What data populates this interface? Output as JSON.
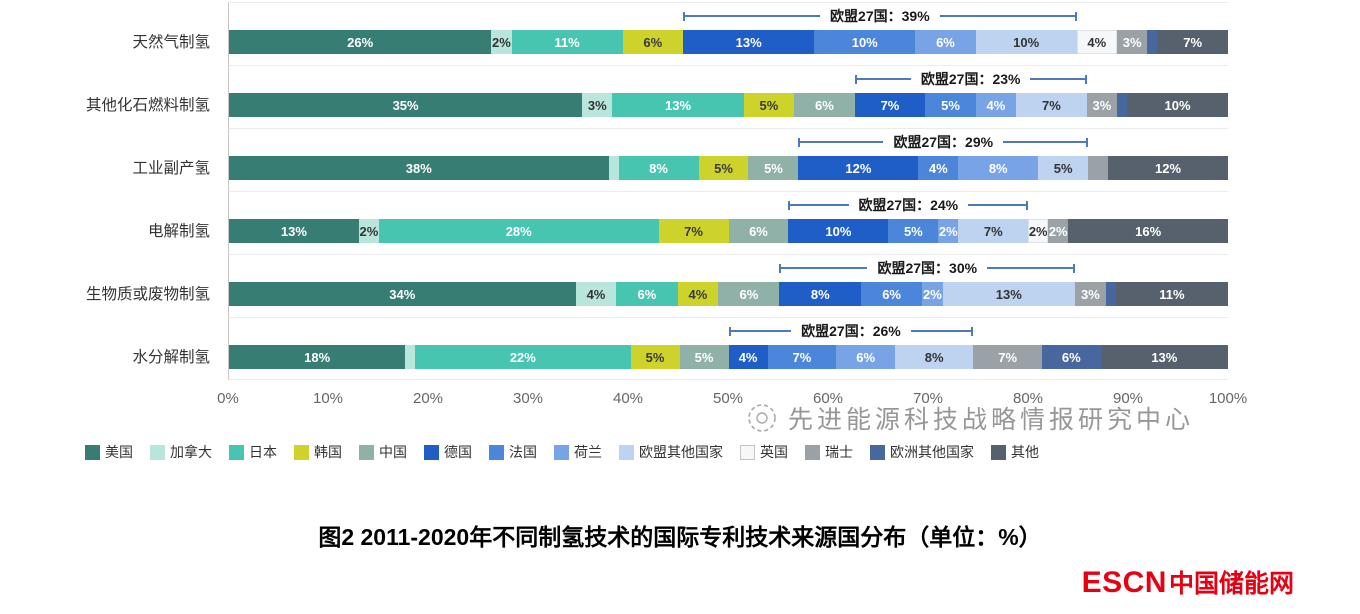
{
  "watermark": {
    "text": "先进能源科技战略情报研究中心"
  },
  "caption": "图2 2011-2020年不同制氢技术的国际专利技术来源国分布（单位：%）",
  "brand": {
    "escn": "ESCN",
    "site": "中国储能网"
  },
  "chart_data": {
    "type": "bar",
    "variant": "horizontal-stacked",
    "unit": "%",
    "xlim": [
      0,
      100
    ],
    "x_ticks": [
      "0%",
      "10%",
      "20%",
      "30%",
      "40%",
      "50%",
      "60%",
      "70%",
      "80%",
      "90%",
      "100%"
    ],
    "legend_position": "bottom",
    "legend": [
      {
        "key": "us",
        "label": "美国",
        "color": "#387d74",
        "text": "#ffffff"
      },
      {
        "key": "canada",
        "label": "加拿大",
        "color": "#b9e6dc",
        "text": "#333333"
      },
      {
        "key": "japan",
        "label": "日本",
        "color": "#48c5b1",
        "text": "#ffffff"
      },
      {
        "key": "korea",
        "label": "韩国",
        "color": "#cdd32a",
        "text": "#3a3a3a"
      },
      {
        "key": "china",
        "label": "中国",
        "color": "#90b1a8",
        "text": "#ffffff"
      },
      {
        "key": "germany",
        "label": "德国",
        "color": "#1f5ec7",
        "text": "#ffffff"
      },
      {
        "key": "france",
        "label": "法国",
        "color": "#4c86da",
        "text": "#ffffff"
      },
      {
        "key": "netherlands",
        "label": "荷兰",
        "color": "#78a3e4",
        "text": "#ffffff"
      },
      {
        "key": "eu_other",
        "label": "欧盟其他国家",
        "color": "#bdd3f0",
        "text": "#333333"
      },
      {
        "key": "uk",
        "label": "英国",
        "color": "#f5f7f9",
        "text": "#333333"
      },
      {
        "key": "switzerland",
        "label": "瑞士",
        "color": "#9aa1a7",
        "text": "#ffffff"
      },
      {
        "key": "europe_other",
        "label": "欧洲其他国家",
        "color": "#48679f",
        "text": "#ffffff"
      },
      {
        "key": "other",
        "label": "其他",
        "color": "#57616d",
        "text": "#ffffff"
      }
    ],
    "eu_bracket_keys": [
      "germany",
      "france",
      "netherlands",
      "eu_other"
    ],
    "rows": [
      {
        "category": "天然气制氢",
        "eu_label": "欧盟27国：39%",
        "segments": [
          {
            "key": "us",
            "value": 26,
            "label": "26%"
          },
          {
            "key": "canada",
            "value": 2,
            "label": "2%"
          },
          {
            "key": "japan",
            "value": 11,
            "label": "11%"
          },
          {
            "key": "korea",
            "value": 6,
            "label": "6%"
          },
          {
            "key": "germany",
            "value": 13,
            "label": "13%"
          },
          {
            "key": "france",
            "value": 10,
            "label": "10%"
          },
          {
            "key": "netherlands",
            "value": 6,
            "label": "6%"
          },
          {
            "key": "eu_other",
            "value": 10,
            "label": "10%"
          },
          {
            "key": "uk",
            "value": 4,
            "label": "4%"
          },
          {
            "key": "switzerland",
            "value": 3,
            "label": "3%"
          },
          {
            "key": "europe_other",
            "value": 1,
            "label": ""
          },
          {
            "key": "other",
            "value": 7,
            "label": "7%"
          }
        ]
      },
      {
        "category": "其他化石燃料制氢",
        "eu_label": "欧盟27国：23%",
        "segments": [
          {
            "key": "us",
            "value": 35,
            "label": "35%"
          },
          {
            "key": "canada",
            "value": 3,
            "label": "3%"
          },
          {
            "key": "japan",
            "value": 13,
            "label": "13%"
          },
          {
            "key": "korea",
            "value": 5,
            "label": "5%"
          },
          {
            "key": "china",
            "value": 6,
            "label": "6%"
          },
          {
            "key": "germany",
            "value": 7,
            "label": "7%"
          },
          {
            "key": "france",
            "value": 5,
            "label": "5%"
          },
          {
            "key": "netherlands",
            "value": 4,
            "label": "4%"
          },
          {
            "key": "eu_other",
            "value": 7,
            "label": "7%"
          },
          {
            "key": "switzerland",
            "value": 3,
            "label": "3%"
          },
          {
            "key": "europe_other",
            "value": 1,
            "label": ""
          },
          {
            "key": "other",
            "value": 10,
            "label": "10%"
          }
        ]
      },
      {
        "category": "工业副产氢",
        "eu_label": "欧盟27国：29%",
        "segments": [
          {
            "key": "us",
            "value": 38,
            "label": "38%"
          },
          {
            "key": "canada",
            "value": 1,
            "label": ""
          },
          {
            "key": "japan",
            "value": 8,
            "label": "8%"
          },
          {
            "key": "korea",
            "value": 5,
            "label": "5%"
          },
          {
            "key": "china",
            "value": 5,
            "label": "5%"
          },
          {
            "key": "germany",
            "value": 12,
            "label": "12%"
          },
          {
            "key": "france",
            "value": 4,
            "label": "4%"
          },
          {
            "key": "netherlands",
            "value": 8,
            "label": "8%"
          },
          {
            "key": "eu_other",
            "value": 5,
            "label": "5%"
          },
          {
            "key": "switzerland",
            "value": 2,
            "label": ""
          },
          {
            "key": "other",
            "value": 12,
            "label": "12%"
          }
        ]
      },
      {
        "category": "电解制氢",
        "eu_label": "欧盟27国：24%",
        "segments": [
          {
            "key": "us",
            "value": 13,
            "label": "13%"
          },
          {
            "key": "canada",
            "value": 2,
            "label": "2%"
          },
          {
            "key": "japan",
            "value": 28,
            "label": "28%"
          },
          {
            "key": "korea",
            "value": 7,
            "label": "7%"
          },
          {
            "key": "china",
            "value": 6,
            "label": "6%"
          },
          {
            "key": "germany",
            "value": 10,
            "label": "10%"
          },
          {
            "key": "france",
            "value": 5,
            "label": "5%"
          },
          {
            "key": "netherlands",
            "value": 2,
            "label": "2%"
          },
          {
            "key": "eu_other",
            "value": 7,
            "label": "7%"
          },
          {
            "key": "uk",
            "value": 2,
            "label": "2%"
          },
          {
            "key": "switzerland",
            "value": 2,
            "label": "2%"
          },
          {
            "key": "other",
            "value": 16,
            "label": "16%"
          }
        ]
      },
      {
        "category": "生物质或废物制氢",
        "eu_label": "欧盟27国：30%",
        "segments": [
          {
            "key": "us",
            "value": 34,
            "label": "34%"
          },
          {
            "key": "canada",
            "value": 4,
            "label": "4%"
          },
          {
            "key": "japan",
            "value": 6,
            "label": "6%"
          },
          {
            "key": "korea",
            "value": 4,
            "label": "4%"
          },
          {
            "key": "china",
            "value": 6,
            "label": "6%"
          },
          {
            "key": "germany",
            "value": 8,
            "label": "8%"
          },
          {
            "key": "france",
            "value": 6,
            "label": "6%"
          },
          {
            "key": "netherlands",
            "value": 2,
            "label": "2%"
          },
          {
            "key": "eu_other",
            "value": 13,
            "label": "13%"
          },
          {
            "key": "switzerland",
            "value": 3,
            "label": "3%"
          },
          {
            "key": "europe_other",
            "value": 1,
            "label": ""
          },
          {
            "key": "other",
            "value": 11,
            "label": "11%"
          }
        ]
      },
      {
        "category": "水分解制氢",
        "eu_label": "欧盟27国：26%",
        "segments": [
          {
            "key": "us",
            "value": 18,
            "label": "18%"
          },
          {
            "key": "canada",
            "value": 1,
            "label": ""
          },
          {
            "key": "japan",
            "value": 22,
            "label": "22%"
          },
          {
            "key": "korea",
            "value": 5,
            "label": "5%"
          },
          {
            "key": "china",
            "value": 5,
            "label": "5%"
          },
          {
            "key": "germany",
            "value": 4,
            "label": "4%"
          },
          {
            "key": "france",
            "value": 7,
            "label": "7%"
          },
          {
            "key": "netherlands",
            "value": 6,
            "label": "6%"
          },
          {
            "key": "eu_other",
            "value": 8,
            "label": "8%"
          },
          {
            "key": "switzerland",
            "value": 7,
            "label": "7%"
          },
          {
            "key": "europe_other",
            "value": 6,
            "label": "6%"
          },
          {
            "key": "other",
            "value": 13,
            "label": "13%"
          }
        ]
      }
    ]
  }
}
